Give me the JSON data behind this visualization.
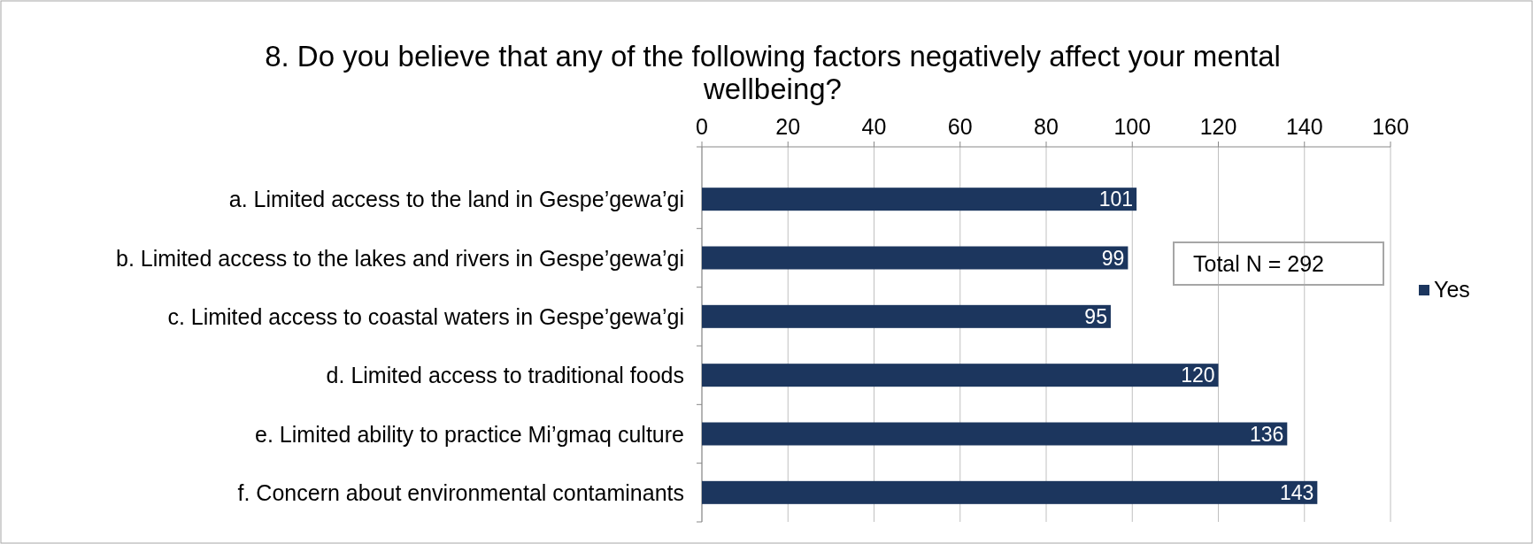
{
  "chart_data": {
    "type": "bar",
    "orientation": "horizontal",
    "title": "8. Do you believe that any of the following factors negatively affect your mental wellbeing?",
    "categories": [
      "a. Limited access to the land in Gespe’gewa’gi",
      "b. Limited access to the lakes and rivers in Gespe’gewa’gi",
      "c. Limited access to coastal waters in Gespe’gewa’gi",
      "d. Limited access to traditional foods",
      "e. Limited ability to practice Mi’gmaq culture",
      "f. Concern about environmental contaminants"
    ],
    "series": [
      {
        "name": "Yes",
        "color": "#1c365e",
        "values": [
          101,
          99,
          95,
          120,
          136,
          143
        ]
      }
    ],
    "xlim": [
      0,
      160
    ],
    "xticks": [
      0,
      20,
      40,
      60,
      80,
      100,
      120,
      140,
      160
    ],
    "grid": "x",
    "legend": "right",
    "data_labels": true,
    "annotations": [
      "Total N = 292"
    ]
  }
}
